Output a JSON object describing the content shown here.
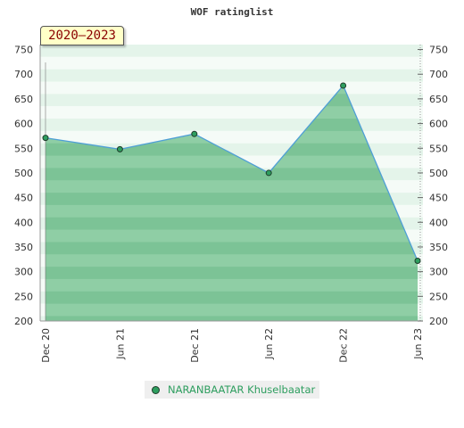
{
  "chart_data": {
    "type": "area",
    "title": "WOF ratinglist",
    "period_label": "2020–2023",
    "x": [
      "Dec 20",
      "Jun 21",
      "Dec 21",
      "Jun 22",
      "Dec 22",
      "Jun 23"
    ],
    "series": [
      {
        "name": "NARANBAATAR Khuselbaatar",
        "values": [
          571,
          548,
          579,
          500,
          677,
          322
        ]
      }
    ],
    "yticks": [
      200,
      250,
      300,
      350,
      400,
      450,
      500,
      550,
      600,
      650,
      700,
      750
    ],
    "ylim": [
      200,
      760
    ],
    "xlabel": "",
    "ylabel": "",
    "grid": "horizontal bands",
    "legend_position": "bottom",
    "colors": {
      "area_fill": "#7cc596",
      "line": "#4f9fd6",
      "marker": "#2e9e5f",
      "legend_text": "#2e9e5f",
      "period_text": "#8b0000"
    }
  }
}
